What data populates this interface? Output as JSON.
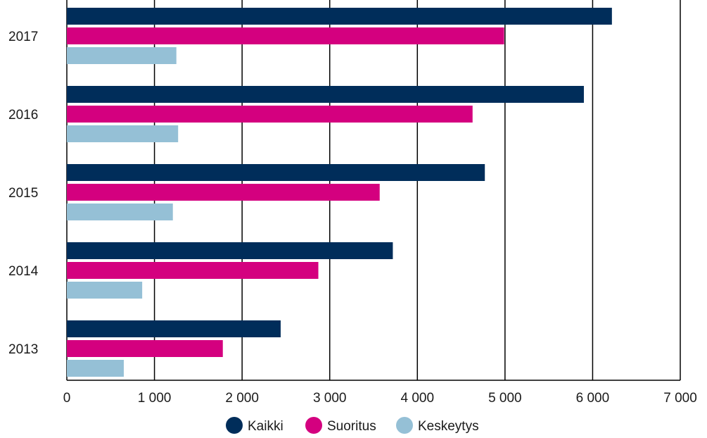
{
  "chart_data": {
    "type": "bar",
    "orientation": "horizontal",
    "categories": [
      "2017",
      "2016",
      "2015",
      "2014",
      "2013"
    ],
    "series": [
      {
        "name": "Kaikki",
        "color": "#002d5a",
        "values": [
          6220,
          5900,
          4770,
          3720,
          2440
        ]
      },
      {
        "name": "Suoritus",
        "color": "#d4007f",
        "values": [
          4990,
          4630,
          3570,
          2870,
          1780
        ]
      },
      {
        "name": "Keskeytys",
        "color": "#95c0d6",
        "values": [
          1250,
          1270,
          1210,
          860,
          650
        ]
      }
    ],
    "x_ticks": [
      "0",
      "1 000",
      "2 000",
      "3 000",
      "4 000",
      "5 000",
      "6 000",
      "7 000"
    ],
    "xlim": [
      0,
      7000
    ],
    "grid": true,
    "legend_position": "bottom"
  }
}
